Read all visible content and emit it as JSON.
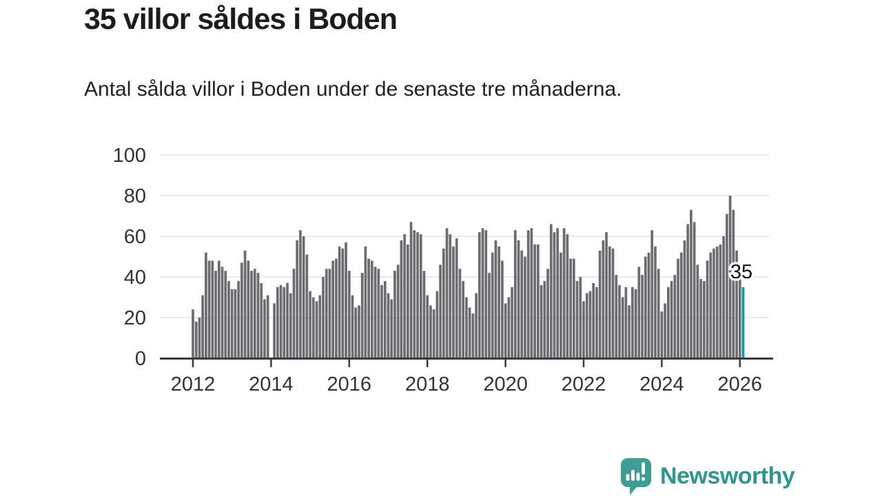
{
  "title": "35 villor såldes i Boden",
  "subtitle": "Antal sålda villor i Boden under de senaste tre månaderna.",
  "chart_data": {
    "type": "bar",
    "title": "35 villor såldes i Boden",
    "subtitle": "Antal sålda villor i Boden under de senaste tre månaderna.",
    "unit": "antal sålda villor (rullande 3 månader)",
    "frequency": "monthly",
    "x_start": "2012-01",
    "x_end": "2026-02",
    "ylim": [
      0,
      100
    ],
    "grid": true,
    "y_tick_labels": [
      "0",
      "20",
      "40",
      "60",
      "80",
      "100"
    ],
    "y_tick_values": [
      0,
      20,
      40,
      60,
      80,
      100
    ],
    "x_tick_labels": [
      "2012",
      "2014",
      "2016",
      "2018",
      "2020",
      "2022",
      "2024",
      "2026"
    ],
    "bar_color": "#6c6c70",
    "highlight_color": "#00a1a5",
    "highlight_label": "35",
    "highlight_value": 35,
    "values": [
      24,
      18,
      20,
      31,
      52,
      48,
      48,
      43,
      48,
      45,
      43,
      38,
      34,
      34,
      38,
      47,
      53,
      48,
      43,
      44,
      42,
      37,
      29,
      31,
      null,
      27,
      35,
      36,
      35,
      37,
      32,
      44,
      58,
      63,
      60,
      51,
      33,
      30,
      28,
      31,
      40,
      44,
      44,
      48,
      49,
      55,
      54,
      57,
      43,
      31,
      25,
      26,
      42,
      55,
      49,
      48,
      45,
      44,
      36,
      38,
      32,
      29,
      43,
      46,
      58,
      61,
      56,
      67,
      63,
      62,
      61,
      43,
      31,
      26,
      24,
      33,
      46,
      54,
      64,
      61,
      55,
      59,
      44,
      38,
      30,
      25,
      22,
      32,
      62,
      64,
      63,
      42,
      52,
      58,
      55,
      48,
      27,
      30,
      35,
      63,
      58,
      53,
      50,
      63,
      64,
      56,
      56,
      36,
      38,
      44,
      66,
      62,
      64,
      52,
      64,
      61,
      49,
      49,
      38,
      40,
      28,
      32,
      33,
      37,
      35,
      53,
      58,
      62,
      55,
      54,
      41,
      36,
      30,
      35,
      26,
      35,
      34,
      45,
      41,
      50,
      52,
      63,
      55,
      44,
      23,
      27,
      35,
      38,
      41,
      49,
      52,
      58,
      66,
      73,
      67,
      46,
      39,
      38,
      48,
      52,
      54,
      55,
      56,
      60,
      71,
      80,
      73,
      53,
      39,
      35
    ]
  },
  "branding": {
    "wordmark": "Newsworthy",
    "icon": "speech-bubble-bar-chart",
    "color": "#2f968c",
    "icon_color": "#3f9d94"
  }
}
